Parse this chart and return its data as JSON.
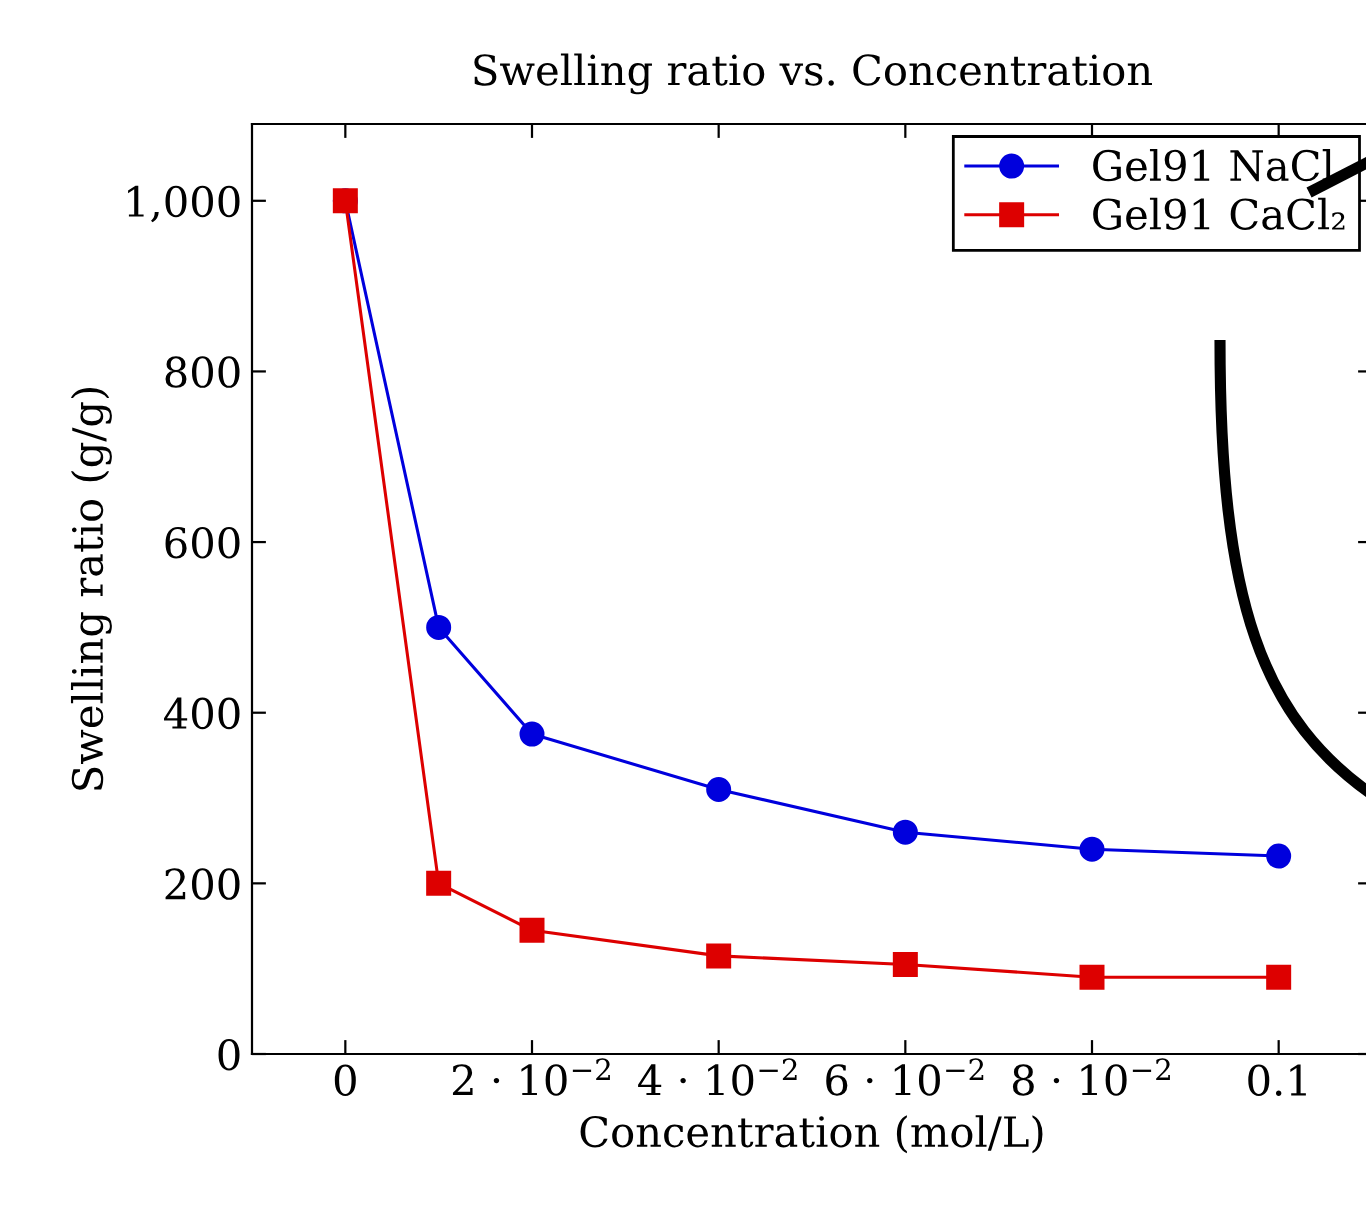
{
  "chart_data": {
    "type": "line",
    "title": "Swelling ratio vs. Concentration",
    "xlabel": "Concentration (mol/L)",
    "ylabel": "Swelling ratio (g/g)",
    "x": [
      0,
      0.01,
      0.02,
      0.04,
      0.06,
      0.08,
      0.1
    ],
    "series": [
      {
        "name": "Gel91 NaCl",
        "color": "#0000dd",
        "marker": "circle",
        "values": [
          1000,
          500,
          375,
          310,
          260,
          240,
          232
        ]
      },
      {
        "name": "Gel91 CaCl₂",
        "color": "#dd0000",
        "marker": "square",
        "values": [
          1000,
          200,
          145,
          115,
          105,
          90,
          90
        ]
      }
    ],
    "xlim": [
      -0.01,
      0.11
    ],
    "ylim": [
      0,
      1090
    ],
    "xticks": [
      0,
      {
        "value": 0.02,
        "label": "2 · 10$^{−2}$"
      },
      {
        "value": 0.04,
        "label": "4 · 10$^{−2}$"
      },
      {
        "value": 0.06,
        "label": "6 · 10$^{−2}$"
      },
      {
        "value": 0.08,
        "label": "8 · 10$^{−2}$"
      },
      0.1
    ],
    "yticks": [
      0,
      200,
      400,
      600,
      800,
      {
        "value": 1000,
        "label": "1,000"
      }
    ],
    "grid": false,
    "legend": "top right",
    "line_style": "solid"
  }
}
